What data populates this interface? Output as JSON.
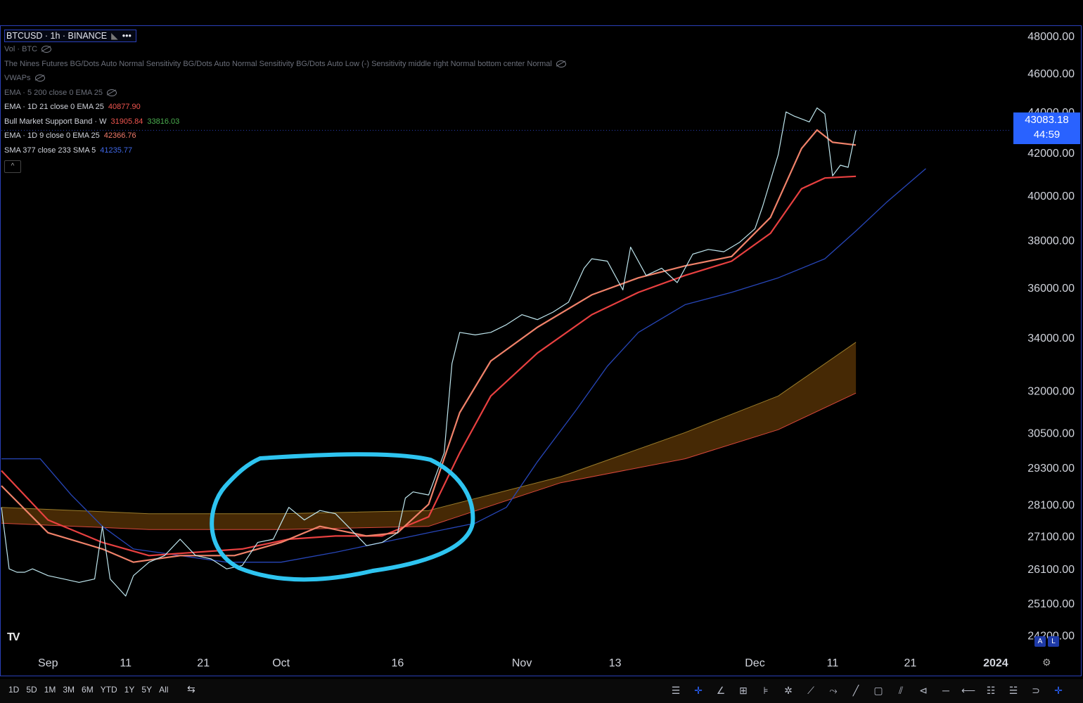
{
  "legend": {
    "symbol": "BTCUSD · 1h · BINANCE",
    "symbol_more": "•••",
    "vol": "Vol · BTC",
    "nines": "The Nines Futures BG/Dots Auto Normal Sensitivity BG/Dots Auto Normal Sensitivity BG/Dots Auto Low (-) Sensitivity middle right Normal bottom center Normal",
    "vwaps": "VWAPs",
    "ema5": "EMA · 5 200 close 0 EMA 25",
    "ema21": {
      "label": "EMA · 1D 21 close 0 EMA 25",
      "value": "40877.90"
    },
    "bull": {
      "label": "Bull Market Support Band · W",
      "value1": "31905.84",
      "value2": "33816.03"
    },
    "ema9": {
      "label": "EMA · 1D 9 close 0 EMA 25",
      "value": "42366.76"
    },
    "sma": {
      "label": "SMA 377 close 233 SMA 5",
      "value": "41235.77"
    },
    "collapse": "^"
  },
  "price_tag": {
    "price": "43083.18",
    "countdown": "44:59"
  },
  "logo": "TV",
  "axis_badges": [
    "A",
    "L"
  ],
  "settings_icon": "⚙",
  "ranges": [
    "1D",
    "5D",
    "1M",
    "3M",
    "6M",
    "YTD",
    "1Y",
    "5Y",
    "All"
  ],
  "calendar_icon": "calendar-icon",
  "tools": [
    "crosshair-icon",
    "cursor-icon",
    "trendline-icon",
    "pattern-icon",
    "fib-icon",
    "brush-icon",
    "ruler-icon",
    "path-icon",
    "line-icon",
    "rectangle-icon",
    "parallel-icon",
    "arrow-icon",
    "hline-icon",
    "ray-icon",
    "measure-icon",
    "zoom-icon",
    "magnet-icon",
    "lock-icon"
  ],
  "colors": {
    "background": "#000000",
    "accent": "#2962ff",
    "ema21": "#e84040",
    "ema9": "#f0826a",
    "sma": "#2746b8",
    "band_upper": "#9a7c2a",
    "band_lower": "#d8473c",
    "band_fill": "#4a2b05",
    "price": "#bfe6ee",
    "annotation": "#2ec4f0"
  },
  "chart_data": {
    "type": "line",
    "title": "BTCUSD · 1h · BINANCE",
    "y_scale": "log",
    "ylim": [
      23800,
      48500
    ],
    "xlim": [
      "2023-08-26",
      "2024-01-03"
    ],
    "y_ticks": [
      24200,
      25100,
      26100,
      27100,
      28100,
      29300,
      30500,
      32000,
      34000,
      36000,
      38000,
      40000,
      42000,
      44000,
      46000,
      48000
    ],
    "y_tick_labels": [
      "24200.00",
      "25100.00",
      "26100.00",
      "27100.00",
      "28100.00",
      "29300.00",
      "30500.00",
      "32000.00",
      "34000.00",
      "36000.00",
      "38000.00",
      "40000.00",
      "42000.00",
      "44000.00",
      "46000.00",
      "48000.00"
    ],
    "x_ticks": [
      {
        "label": "Sep",
        "date": "2023-09-01",
        "bold": false
      },
      {
        "label": "11",
        "date": "2023-09-11",
        "bold": false
      },
      {
        "label": "21",
        "date": "2023-09-21",
        "bold": false
      },
      {
        "label": "Oct",
        "date": "2023-10-01",
        "bold": false
      },
      {
        "label": "16",
        "date": "2023-10-16",
        "bold": false
      },
      {
        "label": "Nov",
        "date": "2023-11-01",
        "bold": false
      },
      {
        "label": "13",
        "date": "2023-11-13",
        "bold": false
      },
      {
        "label": "Dec",
        "date": "2023-12-01",
        "bold": false
      },
      {
        "label": "11",
        "date": "2023-12-11",
        "bold": false
      },
      {
        "label": "21",
        "date": "2023-12-21",
        "bold": false
      },
      {
        "label": "2024",
        "date": "2024-01-01",
        "bold": true
      }
    ],
    "last_price": 43083.18,
    "series": [
      {
        "key": "price",
        "x": [
          "2023-08-26",
          "2023-08-27",
          "2023-08-28",
          "2023-08-29",
          "2023-08-30",
          "2023-09-01",
          "2023-09-03",
          "2023-09-05",
          "2023-09-07",
          "2023-09-08",
          "2023-09-09",
          "2023-09-11",
          "2023-09-12",
          "2023-09-14",
          "2023-09-16",
          "2023-09-18",
          "2023-09-20",
          "2023-09-22",
          "2023-09-24",
          "2023-09-26",
          "2023-09-28",
          "2023-09-30",
          "2023-10-01",
          "2023-10-02",
          "2023-10-04",
          "2023-10-06",
          "2023-10-08",
          "2023-10-10",
          "2023-10-12",
          "2023-10-14",
          "2023-10-16",
          "2023-10-17",
          "2023-10-18",
          "2023-10-20",
          "2023-10-22",
          "2023-10-23",
          "2023-10-24",
          "2023-10-26",
          "2023-10-28",
          "2023-10-30",
          "2023-11-01",
          "2023-11-03",
          "2023-11-05",
          "2023-11-07",
          "2023-11-09",
          "2023-11-10",
          "2023-11-12",
          "2023-11-14",
          "2023-11-15",
          "2023-11-17",
          "2023-11-19",
          "2023-11-21",
          "2023-11-23",
          "2023-11-25",
          "2023-11-27",
          "2023-11-29",
          "2023-12-01",
          "2023-12-02",
          "2023-12-04",
          "2023-12-05",
          "2023-12-06",
          "2023-12-08",
          "2023-12-09",
          "2023-12-10",
          "2023-12-11",
          "2023-12-12",
          "2023-12-13",
          "2023-12-14"
        ],
        "values": [
          28000,
          26100,
          26000,
          26000,
          26100,
          25900,
          25800,
          25700,
          25800,
          27400,
          25800,
          25300,
          25900,
          26300,
          26500,
          27000,
          26500,
          26400,
          26100,
          26200,
          26900,
          27000,
          27500,
          28000,
          27600,
          27900,
          27800,
          27300,
          26800,
          26900,
          27200,
          28300,
          28500,
          28400,
          29800,
          33000,
          34200,
          34100,
          34200,
          34500,
          34900,
          34700,
          35000,
          35400,
          36800,
          37200,
          37100,
          35900,
          37700,
          36500,
          36800,
          36200,
          37400,
          37600,
          37500,
          37900,
          38500,
          39500,
          41900,
          44000,
          43800,
          43500,
          44200,
          43900,
          40900,
          41400,
          41300,
          43083
        ]
      },
      {
        "key": "ema9",
        "name": "EMA · 1D 9 close 0 EMA 25",
        "x": [
          "2023-08-26",
          "2023-09-01",
          "2023-09-08",
          "2023-09-12",
          "2023-09-18",
          "2023-09-25",
          "2023-10-01",
          "2023-10-06",
          "2023-10-12",
          "2023-10-16",
          "2023-10-20",
          "2023-10-24",
          "2023-10-28",
          "2023-11-03",
          "2023-11-10",
          "2023-11-16",
          "2023-11-22",
          "2023-11-28",
          "2023-12-03",
          "2023-12-07",
          "2023-12-09",
          "2023-12-11",
          "2023-12-14"
        ],
        "values": [
          28700,
          27200,
          26700,
          26300,
          26500,
          26500,
          26900,
          27400,
          27100,
          27200,
          28100,
          31200,
          33100,
          34400,
          35700,
          36400,
          36900,
          37300,
          39000,
          42200,
          43100,
          42500,
          42366.76
        ]
      },
      {
        "key": "ema21",
        "name": "EMA · 1D 21 close 0 EMA 25",
        "x": [
          "2023-08-26",
          "2023-09-01",
          "2023-09-08",
          "2023-09-14",
          "2023-09-20",
          "2023-09-26",
          "2023-10-02",
          "2023-10-08",
          "2023-10-14",
          "2023-10-20",
          "2023-10-24",
          "2023-10-28",
          "2023-11-03",
          "2023-11-10",
          "2023-11-16",
          "2023-11-22",
          "2023-11-28",
          "2023-12-03",
          "2023-12-07",
          "2023-12-10",
          "2023-12-14"
        ],
        "values": [
          29200,
          27600,
          26900,
          26500,
          26600,
          26700,
          27000,
          27100,
          27100,
          27700,
          29800,
          31800,
          33400,
          34900,
          35800,
          36500,
          37100,
          38300,
          40300,
          40800,
          40877.9
        ]
      },
      {
        "key": "sma",
        "name": "SMA 377 close 233 SMA 5",
        "x": [
          "2023-08-26",
          "2023-08-31",
          "2023-09-04",
          "2023-09-08",
          "2023-09-12",
          "2023-09-18",
          "2023-09-24",
          "2023-10-01",
          "2023-10-08",
          "2023-10-16",
          "2023-10-20",
          "2023-10-26",
          "2023-10-30",
          "2023-11-03",
          "2023-11-08",
          "2023-11-12",
          "2023-11-16",
          "2023-11-22",
          "2023-11-28",
          "2023-12-04",
          "2023-12-10",
          "2023-12-14",
          "2023-12-18",
          "2023-12-23"
        ],
        "values": [
          29600,
          29600,
          28400,
          27400,
          26700,
          26500,
          26300,
          26300,
          26600,
          27000,
          27200,
          27500,
          28000,
          29500,
          31300,
          32900,
          34200,
          35300,
          35800,
          36400,
          37200,
          38400,
          39700,
          41235.77
        ]
      },
      {
        "key": "band_upper",
        "name": "Bull Market Support Band · W",
        "x": [
          "2023-08-26",
          "2023-09-14",
          "2023-10-01",
          "2023-10-20",
          "2023-11-06",
          "2023-11-22",
          "2023-12-04",
          "2023-12-14"
        ],
        "values": [
          28000,
          27800,
          27800,
          27900,
          29000,
          30500,
          31800,
          33816.03
        ]
      },
      {
        "key": "band_lower",
        "name": "Bull Market Support Band · W",
        "x": [
          "2023-08-26",
          "2023-09-14",
          "2023-10-01",
          "2023-10-20",
          "2023-11-06",
          "2023-11-22",
          "2023-12-04",
          "2023-12-14"
        ],
        "values": [
          27500,
          27300,
          27300,
          27400,
          28800,
          29600,
          30600,
          31905.84
        ]
      }
    ]
  }
}
